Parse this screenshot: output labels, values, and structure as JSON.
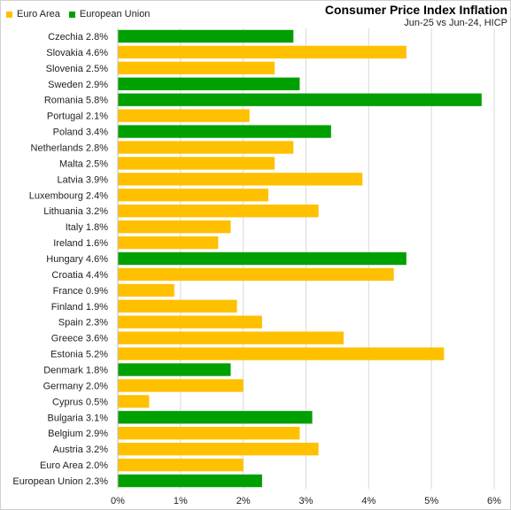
{
  "chart_data": {
    "type": "bar",
    "orientation": "horizontal",
    "title": "Consumer Price Index Inflation",
    "subtitle": "Jun-25 vs Jun-24, HICP",
    "legend": [
      {
        "name": "Euro Area",
        "color": "#FFC000"
      },
      {
        "name": "European Union",
        "color": "#00A000"
      }
    ],
    "legend_position": "top-left",
    "xlim": [
      0,
      6
    ],
    "x_ticks": [
      "0%",
      "1%",
      "2%",
      "3%",
      "4%",
      "5%",
      "6%"
    ],
    "grid": "vertical",
    "categories": [
      {
        "label": "Czechia 2.8%",
        "value": 2.8,
        "group": "European Union"
      },
      {
        "label": "Slovakia 4.6%",
        "value": 4.6,
        "group": "Euro Area"
      },
      {
        "label": "Slovenia 2.5%",
        "value": 2.5,
        "group": "Euro Area"
      },
      {
        "label": "Sweden 2.9%",
        "value": 2.9,
        "group": "European Union"
      },
      {
        "label": "Romania 5.8%",
        "value": 5.8,
        "group": "European Union"
      },
      {
        "label": "Portugal 2.1%",
        "value": 2.1,
        "group": "Euro Area"
      },
      {
        "label": "Poland 3.4%",
        "value": 3.4,
        "group": "European Union"
      },
      {
        "label": "Netherlands 2.8%",
        "value": 2.8,
        "group": "Euro Area"
      },
      {
        "label": "Malta 2.5%",
        "value": 2.5,
        "group": "Euro Area"
      },
      {
        "label": "Latvia 3.9%",
        "value": 3.9,
        "group": "Euro Area"
      },
      {
        "label": "Luxembourg 2.4%",
        "value": 2.4,
        "group": "Euro Area"
      },
      {
        "label": "Lithuania 3.2%",
        "value": 3.2,
        "group": "Euro Area"
      },
      {
        "label": "Italy 1.8%",
        "value": 1.8,
        "group": "Euro Area"
      },
      {
        "label": "Ireland 1.6%",
        "value": 1.6,
        "group": "Euro Area"
      },
      {
        "label": "Hungary 4.6%",
        "value": 4.6,
        "group": "European Union"
      },
      {
        "label": "Croatia 4.4%",
        "value": 4.4,
        "group": "Euro Area"
      },
      {
        "label": "France 0.9%",
        "value": 0.9,
        "group": "Euro Area"
      },
      {
        "label": "Finland 1.9%",
        "value": 1.9,
        "group": "Euro Area"
      },
      {
        "label": "Spain 2.3%",
        "value": 2.3,
        "group": "Euro Area"
      },
      {
        "label": "Greece 3.6%",
        "value": 3.6,
        "group": "Euro Area"
      },
      {
        "label": "Estonia 5.2%",
        "value": 5.2,
        "group": "Euro Area"
      },
      {
        "label": "Denmark 1.8%",
        "value": 1.8,
        "group": "European Union"
      },
      {
        "label": "Germany 2.0%",
        "value": 2.0,
        "group": "Euro Area"
      },
      {
        "label": "Cyprus 0.5%",
        "value": 0.5,
        "group": "Euro Area"
      },
      {
        "label": "Bulgaria 3.1%",
        "value": 3.1,
        "group": "European Union"
      },
      {
        "label": "Belgium 2.9%",
        "value": 2.9,
        "group": "Euro Area"
      },
      {
        "label": "Austria 3.2%",
        "value": 3.2,
        "group": "Euro Area"
      },
      {
        "label": "Euro Area 2.0%",
        "value": 2.0,
        "group": "Euro Area"
      },
      {
        "label": "European Union 2.3%",
        "value": 2.3,
        "group": "European Union"
      }
    ]
  }
}
